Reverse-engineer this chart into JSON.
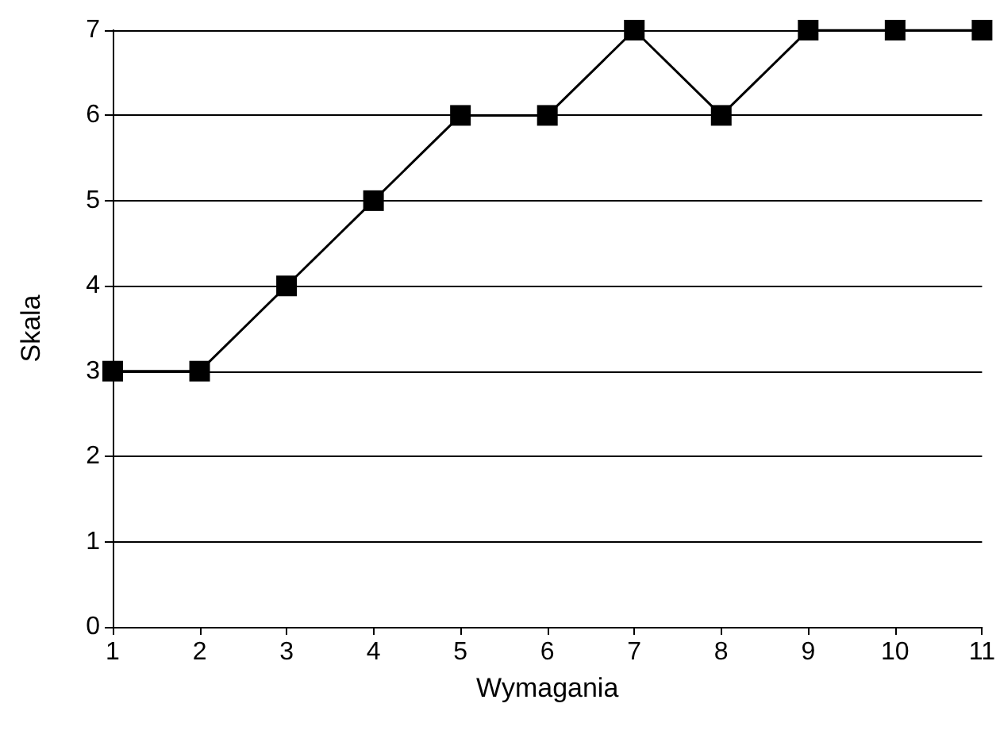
{
  "chart_data": {
    "type": "line",
    "xlabel": "Wymagania",
    "ylabel": "Skala",
    "x": [
      1,
      2,
      3,
      4,
      5,
      6,
      7,
      8,
      9,
      10,
      11
    ],
    "series": [
      {
        "color": "#000000",
        "values": [
          3,
          3,
          4,
          5,
          6,
          6,
          7,
          6,
          7,
          7,
          7
        ]
      }
    ],
    "xlim": [
      1,
      11
    ],
    "xticks": [
      1,
      2,
      3,
      4,
      5,
      6,
      7,
      8,
      9,
      10,
      11
    ],
    "ylim": [
      0,
      7
    ],
    "yticks": [
      0,
      1,
      2,
      3,
      4,
      5,
      6,
      7
    ],
    "grid": "y",
    "marker": "square",
    "line_style": "solid"
  }
}
